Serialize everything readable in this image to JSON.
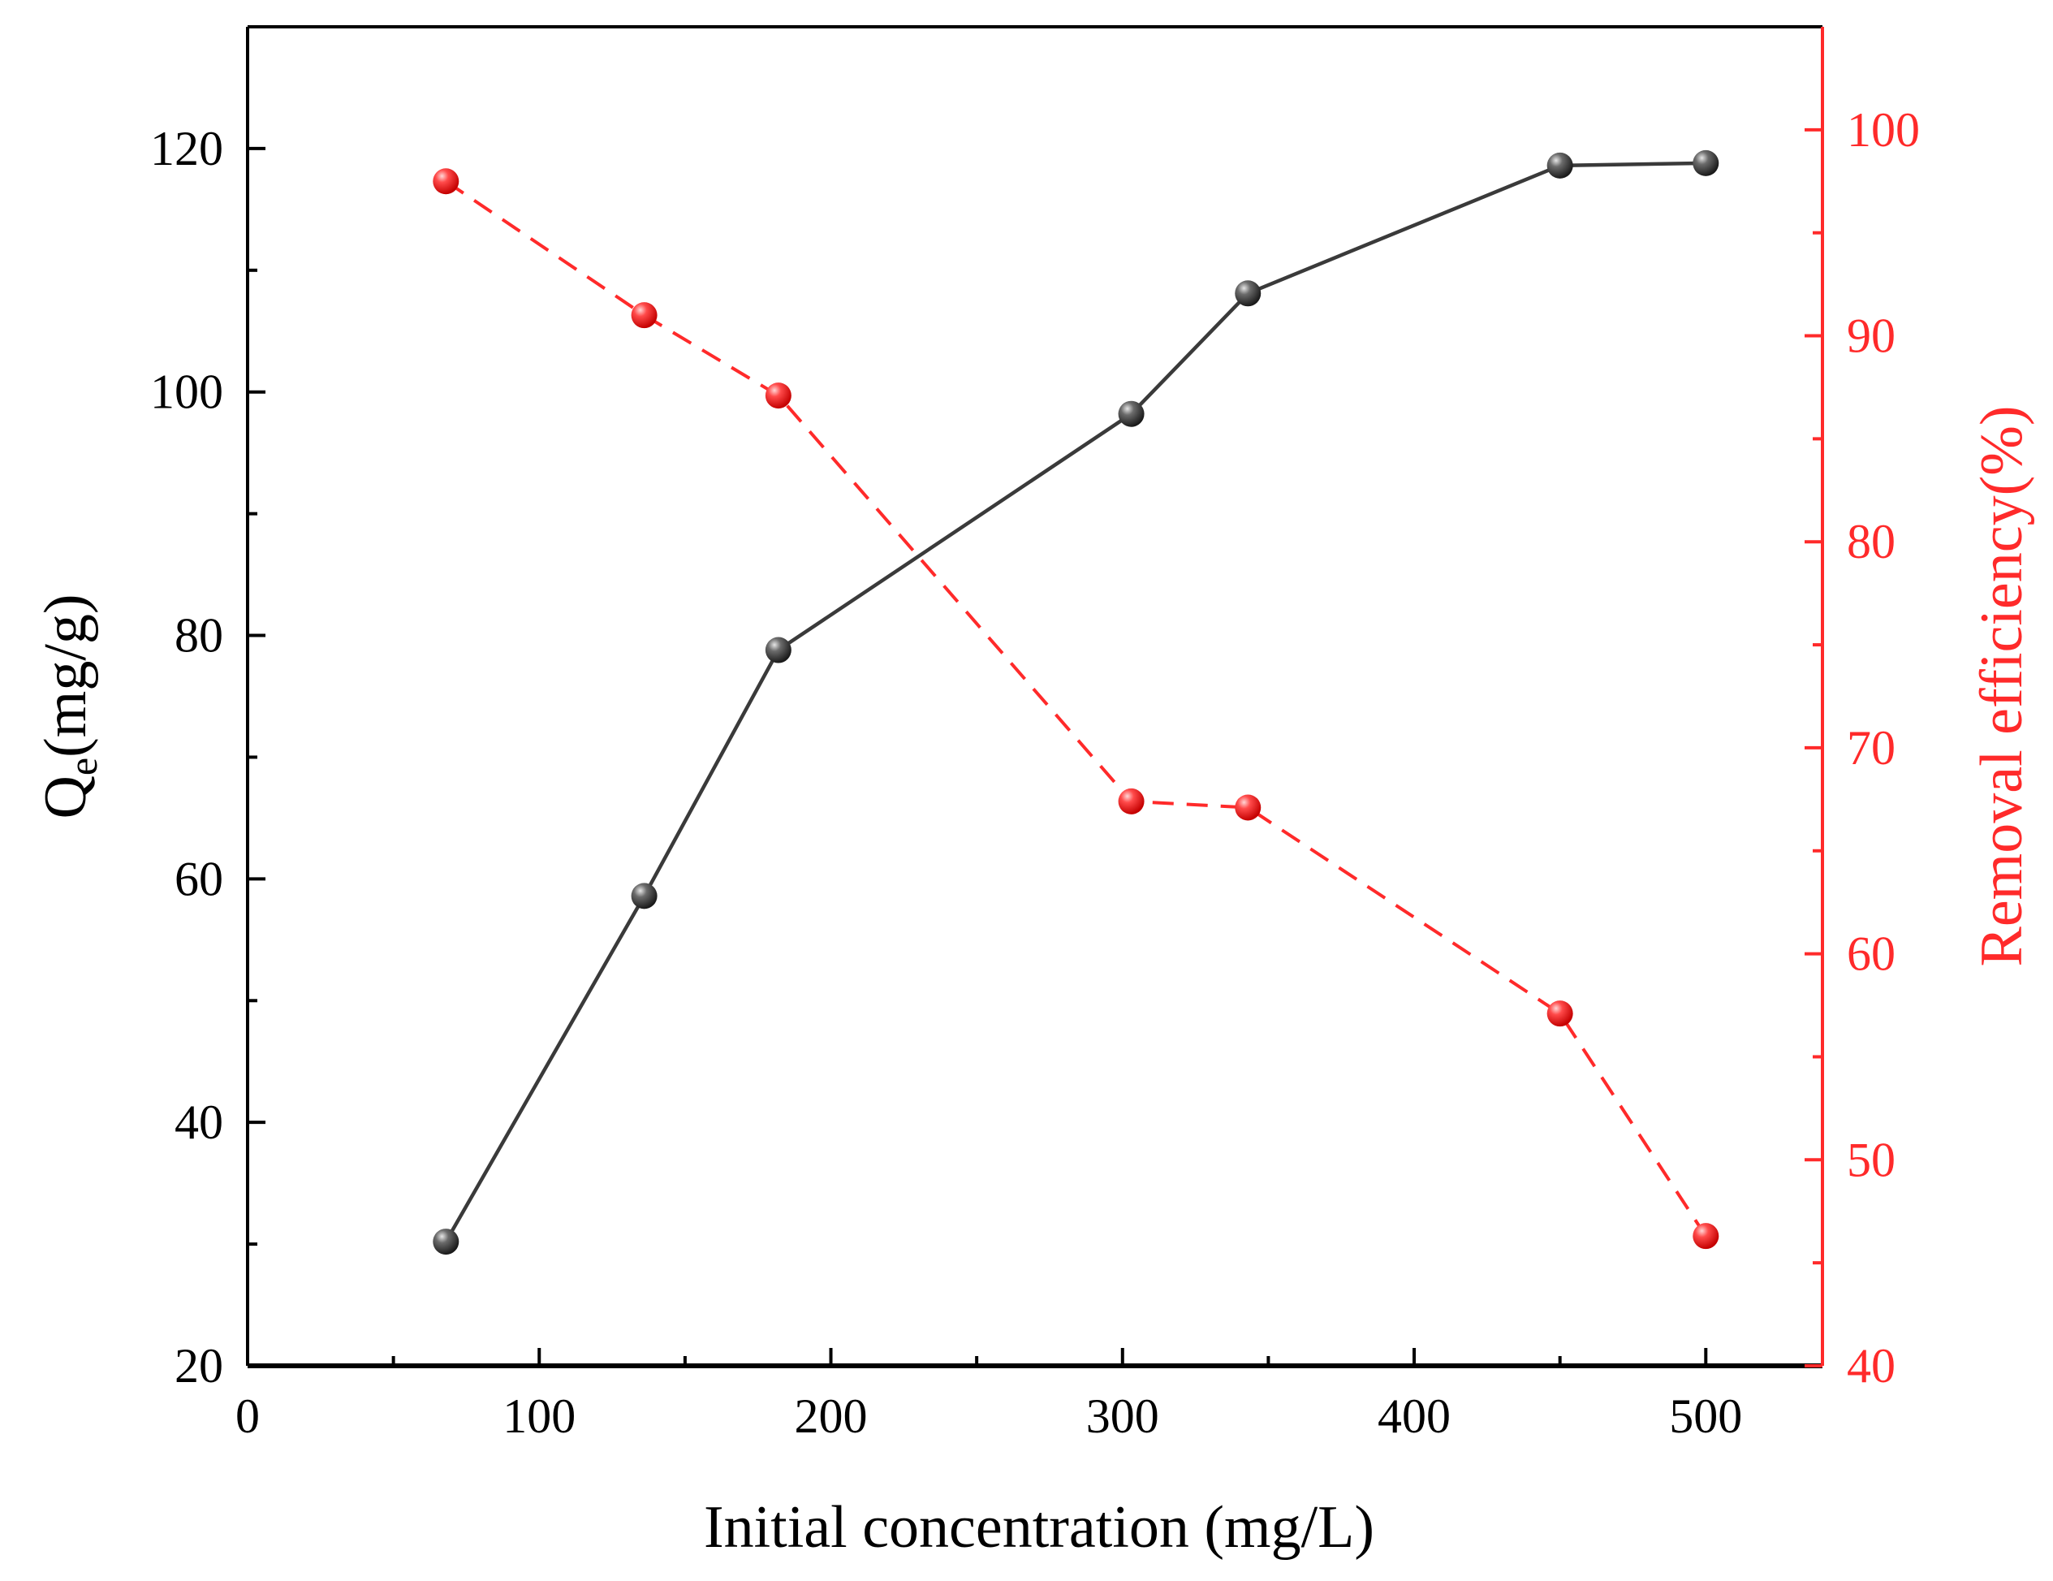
{
  "chart_data": {
    "type": "line",
    "title": "",
    "xlabel": "Initial concentration (mg/L)",
    "ylabel_left": {
      "main": "Q",
      "sub": "e",
      "rest": "(mg/g)"
    },
    "ylabel_right": "Removal efficiency(%)",
    "xlim": [
      0,
      540
    ],
    "ylim_left": [
      20,
      130
    ],
    "ylim_right": [
      40,
      105
    ],
    "x_ticks": [
      0,
      100,
      200,
      300,
      400,
      500
    ],
    "x_tick_labels": [
      "0",
      "100",
      "200",
      "300",
      "400",
      "500"
    ],
    "y_left_ticks": [
      20,
      40,
      60,
      80,
      100,
      120
    ],
    "y_left_tick_labels": [
      "20",
      "40",
      "60",
      "80",
      "100",
      "120"
    ],
    "y_right_ticks": [
      40,
      50,
      60,
      70,
      80,
      90,
      100
    ],
    "y_right_tick_labels": [
      "40",
      "50",
      "60",
      "70",
      "80",
      "90",
      "100"
    ],
    "series": [
      {
        "name": "Qe",
        "axis": "left",
        "style": "solid",
        "color": "#3a3a3a",
        "x": [
          68,
          136,
          182,
          303,
          343,
          450,
          500
        ],
        "values": [
          30.2,
          58.6,
          78.8,
          98.2,
          108.1,
          118.6,
          118.8
        ]
      },
      {
        "name": "Removal efficiency",
        "axis": "right",
        "style": "dashed",
        "color": "#ff2a2a",
        "x": [
          68,
          136,
          182,
          303,
          343,
          450,
          500
        ],
        "values": [
          97.5,
          91.0,
          87.1,
          67.4,
          67.1,
          57.1,
          46.3
        ]
      }
    ],
    "grid": false,
    "legend": "none",
    "colors": {
      "left_axis": "#000000",
      "right_axis": "#ff2a2a"
    }
  }
}
